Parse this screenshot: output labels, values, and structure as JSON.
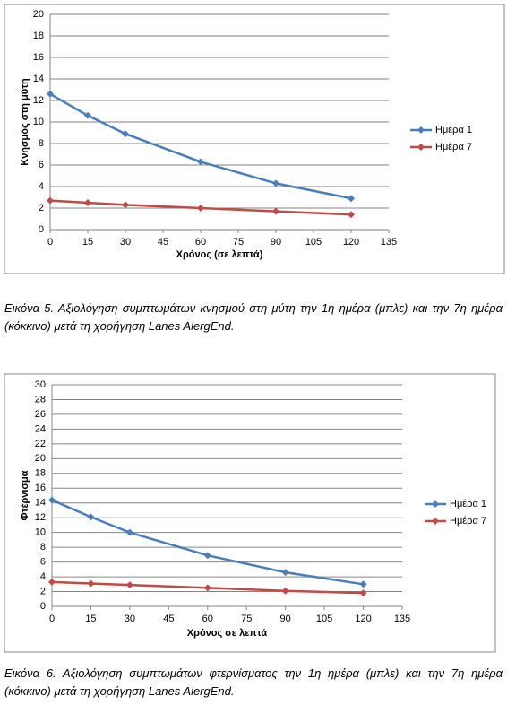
{
  "chart_data": [
    {
      "type": "line",
      "ylabel": "Κνησμός στη μύτη",
      "xlabel": "Χρόνος (σε λεπτά)",
      "x": [
        0,
        15,
        30,
        60,
        90,
        120
      ],
      "series": [
        {
          "name": "Ημέρα 1",
          "color": "#4a7ebb",
          "values": [
            12.6,
            10.6,
            8.9,
            6.3,
            4.3,
            2.9
          ]
        },
        {
          "name": "Ημέρα 7",
          "color": "#be4b48",
          "values": [
            2.7,
            2.5,
            2.3,
            2.0,
            1.7,
            1.4
          ]
        }
      ],
      "xlim": [
        0,
        135
      ],
      "xticks": [
        0,
        15,
        30,
        45,
        60,
        75,
        90,
        105,
        120,
        135
      ],
      "ylim": [
        0,
        20
      ],
      "yticks": [
        0,
        2,
        4,
        6,
        8,
        10,
        12,
        14,
        16,
        18,
        20
      ],
      "grid": true,
      "legend": "right"
    },
    {
      "type": "line",
      "ylabel": "Φτέρνισμα",
      "xlabel": "Χρόνος σε λεπτά",
      "x": [
        0,
        15,
        30,
        60,
        90,
        120
      ],
      "series": [
        {
          "name": "Ημέρα 1",
          "color": "#4a7ebb",
          "values": [
            14.4,
            12.1,
            10.0,
            6.9,
            4.6,
            3.0
          ]
        },
        {
          "name": "Ημέρα 7",
          "color": "#be4b48",
          "values": [
            3.3,
            3.1,
            2.9,
            2.5,
            2.1,
            1.8
          ]
        }
      ],
      "xlim": [
        0,
        135
      ],
      "xticks": [
        0,
        15,
        30,
        45,
        60,
        75,
        90,
        105,
        120,
        135
      ],
      "ylim": [
        0,
        30
      ],
      "yticks": [
        0,
        2,
        4,
        6,
        8,
        10,
        12,
        14,
        16,
        18,
        20,
        22,
        24,
        26,
        28,
        30
      ],
      "grid": true,
      "legend": "right"
    }
  ],
  "captions": [
    "Εικόνα 5. Αξιολόγηση συμπτωμάτων κνησμού στη μύτη την 1η ημέρα (μπλε) και την 7η ημέρα (κόκκινο) μετά τη χορήγηση Lanes AlergEnd.",
    "Εικόνα 6. Αξιολόγηση συμπτωμάτων φτερνίσματος την 1η ημέρα (μπλε) και την 7η ημέρα (κόκκινο) μετά τη χορήγηση Lanes AlergEnd."
  ]
}
